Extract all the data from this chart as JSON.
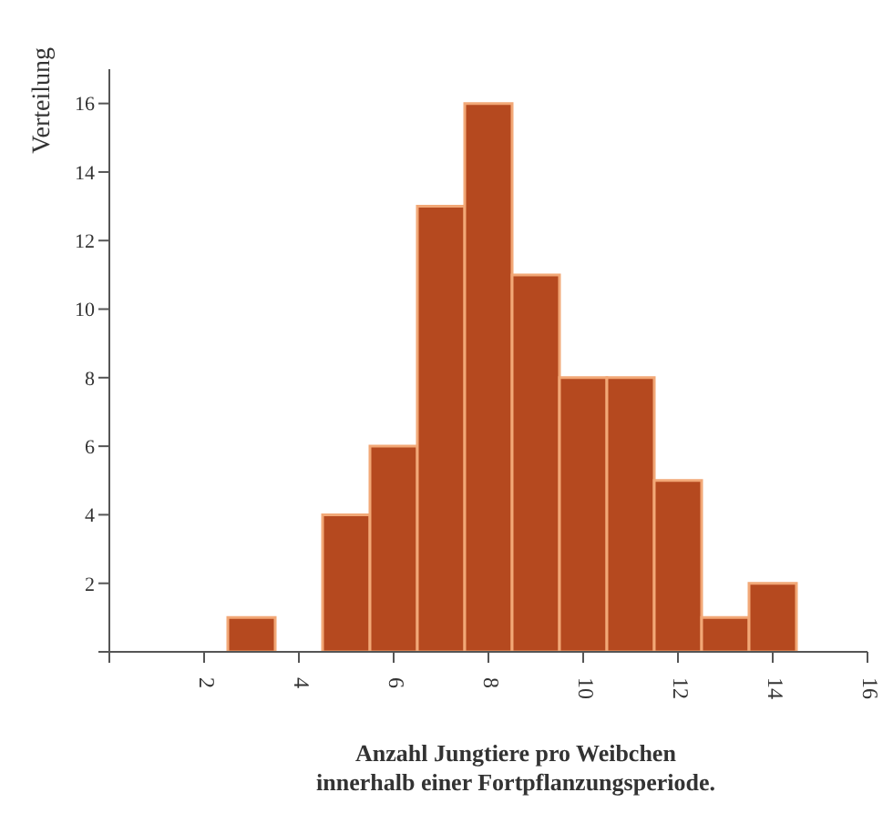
{
  "chart_data": {
    "type": "histogram",
    "xlabel": "Anzahl Jungtiere pro Weibchen\ninnerhalb einer Fortpflanzungsperiode.",
    "ylabel": "Verteilung",
    "bins": [
      2.5,
      3.5,
      4.5,
      5.5,
      6.5,
      7.5,
      8.5,
      9.5,
      10.5,
      11.5,
      12.5,
      13.5,
      14.5
    ],
    "values": [
      1,
      0,
      4,
      6,
      13,
      16,
      11,
      8,
      8,
      5,
      1,
      2
    ],
    "color": "#b5491f",
    "xlim": [
      0,
      16
    ],
    "xticks": [
      {
        "value": 0,
        "label": null
      },
      2,
      4,
      6,
      8,
      10,
      12,
      14,
      16
    ],
    "ylim": [
      0,
      17
    ],
    "yticks": [
      {
        "value": 0,
        "label": null
      },
      2,
      4,
      6,
      8,
      10,
      12,
      14,
      16
    ],
    "grid": false
  }
}
